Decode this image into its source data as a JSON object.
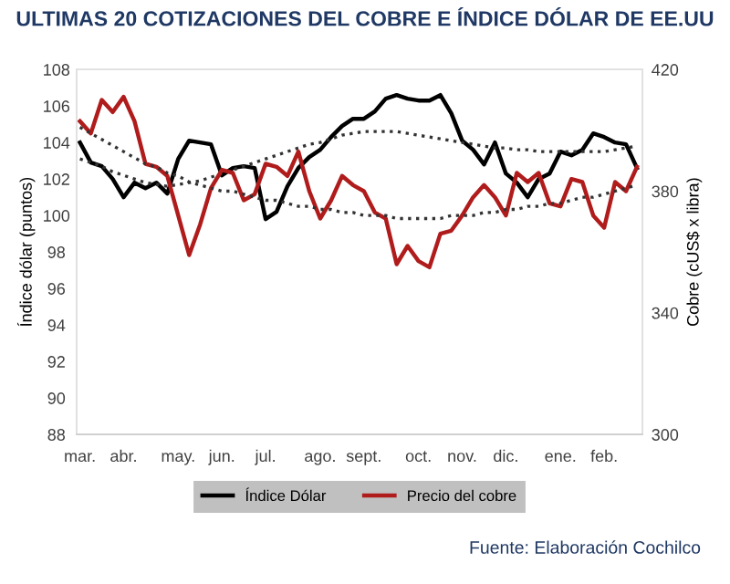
{
  "chart_data": {
    "type": "line",
    "title": "ULTIMAS 20 COTIZACIONES DEL COBRE E ÍNDICE DÓLAR DE EE.UU",
    "ylabel": "Índice dólar (puntos)",
    "y2label": "Cobre (cUS$ x libra)",
    "annotations": [
      "Fuente: Elaboración Cochilco"
    ],
    "categories": [
      "mar.",
      null,
      null,
      null,
      "abr.",
      null,
      null,
      null,
      null,
      "may.",
      null,
      null,
      null,
      "jun.",
      null,
      null,
      null,
      "jul.",
      null,
      null,
      null,
      null,
      "ago.",
      null,
      null,
      null,
      "sept.",
      null,
      null,
      null,
      null,
      "oct.",
      null,
      null,
      null,
      "nov.",
      null,
      null,
      null,
      "dic.",
      null,
      null,
      null,
      null,
      "ene.",
      null,
      null,
      null,
      "feb.",
      null,
      null,
      null
    ],
    "ylim": [
      88,
      108
    ],
    "yticks": [
      88,
      90,
      92,
      94,
      96,
      98,
      100,
      102,
      104,
      106,
      108
    ],
    "y2lim": [
      300,
      420
    ],
    "y2ticks": [
      300,
      340,
      380,
      420
    ],
    "grid": false,
    "legend": "bottom",
    "marker": "none",
    "series": [
      {
        "name": "Índice Dólar",
        "color": "#000000",
        "line_style": "solid",
        "values": [
          104.0,
          102.9,
          102.7,
          102.0,
          101.0,
          101.8,
          101.5,
          101.8,
          101.2,
          103.1,
          104.1,
          104.0,
          103.9,
          102.2,
          102.6,
          102.7,
          102.6,
          99.8,
          100.2,
          101.6,
          102.6,
          103.2,
          103.6,
          104.3,
          104.9,
          105.3,
          105.3,
          105.7,
          106.4,
          106.6,
          106.4,
          106.3,
          106.3,
          106.6,
          105.6,
          104.1,
          103.6,
          102.8,
          104.0,
          102.3,
          101.8,
          101.0,
          102.0,
          102.3,
          103.5,
          103.3,
          103.6,
          104.5,
          104.3,
          104.0,
          103.9,
          102.6
        ]
      },
      {
        "name": "Precio del cobre",
        "color": "#b01c1c",
        "axis": "y2",
        "line_style": "solid",
        "values": [
          403,
          399,
          410,
          406,
          411,
          403,
          389,
          388,
          385,
          372,
          359,
          369,
          381,
          387,
          386,
          377,
          379,
          389,
          388,
          385,
          393,
          380,
          371,
          377,
          385,
          382,
          380,
          373,
          371,
          356,
          362,
          357,
          355,
          366,
          367,
          372,
          378,
          382,
          378,
          372,
          386,
          383,
          386,
          376,
          375,
          384,
          383,
          372,
          368,
          383,
          380,
          388
        ]
      },
      {
        "color": "#333333",
        "line_style": "dotted",
        "values": [
          103.1,
          102.9,
          102.7,
          102.4,
          102.2,
          102.0,
          101.8,
          101.7,
          101.6,
          101.7,
          101.8,
          101.9,
          102.1,
          102.3,
          102.5,
          102.7,
          102.9,
          103.1,
          103.3,
          103.5,
          103.7,
          103.9,
          104.0,
          104.2,
          104.4,
          104.5,
          104.6,
          104.6,
          104.6,
          104.6,
          104.5,
          104.4,
          104.3,
          104.2,
          104.1,
          104.0,
          103.9,
          103.8,
          103.7,
          103.7,
          103.6,
          103.6,
          103.5,
          103.5,
          103.5,
          103.5,
          103.5,
          103.5,
          103.5,
          103.6,
          103.7,
          103.8
        ]
      },
      {
        "color": "#333333",
        "line_style": "dotted",
        "axis": "y2",
        "values": [
          401,
          399,
          397,
          395,
          393,
          391,
          389,
          388,
          386,
          385,
          383,
          382,
          381,
          380,
          380,
          379,
          378,
          377,
          377,
          376,
          375,
          375,
          374,
          374,
          373,
          373,
          372,
          372,
          372,
          371,
          371,
          371,
          371,
          371,
          372,
          372,
          372,
          373,
          373,
          374,
          374,
          375,
          375,
          376,
          376,
          377,
          378,
          378,
          379,
          380,
          381,
          382
        ]
      }
    ]
  }
}
